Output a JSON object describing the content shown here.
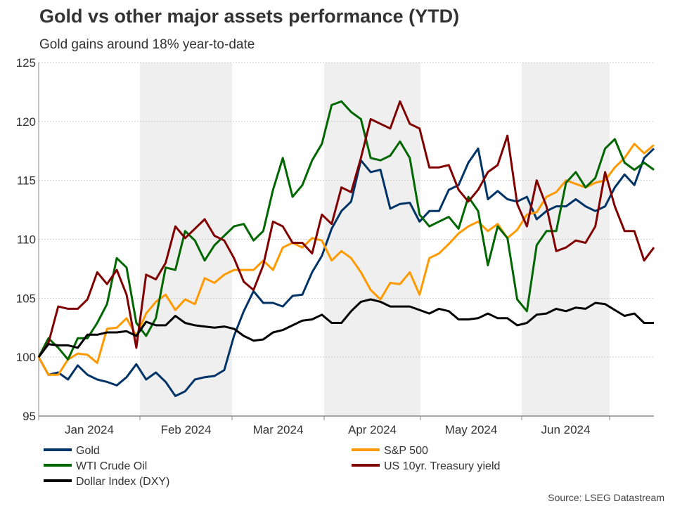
{
  "chart_data": {
    "type": "line",
    "title": "Gold vs other major assets performance (YTD)",
    "subtitle": "Gold gains around 18% year-to-date",
    "xlabel": "",
    "ylabel": "",
    "ylim": [
      95,
      125
    ],
    "yticks": [
      95,
      100,
      105,
      110,
      115,
      120,
      125
    ],
    "x_tick_labels": [
      "Jan 2024",
      "Feb 2024",
      "Mar 2024",
      "Apr 2024",
      "May 2024",
      "Jun 2024"
    ],
    "x_note": "x values are sampling points approx. every two trading days from early Jan to end of Jun 2024 (index 0-63)",
    "grid": true,
    "legend_position": "bottom",
    "source": "Source: LSEG Datastream",
    "series": [
      {
        "name": "Gold",
        "color": "#003366",
        "values": [
          100,
          98.5,
          98.7,
          98.1,
          99.3,
          98.5,
          98.1,
          97.9,
          97.6,
          98.3,
          99.4,
          98.1,
          98.7,
          97.9,
          96.7,
          97.1,
          98.1,
          98.3,
          98.4,
          98.9,
          101.8,
          103.9,
          105.6,
          104.6,
          104.6,
          104.3,
          105.2,
          105.3,
          107.2,
          108.6,
          110.9,
          112.4,
          113.2,
          116.7,
          115.7,
          115.9,
          112.6,
          113.0,
          113.1,
          111.5,
          112.4,
          112.4,
          114.2,
          114.6,
          116.5,
          117.7,
          113.4,
          114.1,
          113.4,
          113.2,
          113.6,
          111.7,
          112.4,
          112.8,
          112.8,
          113.4,
          112.8,
          112.4,
          112.8,
          114.4,
          115.5,
          114.6,
          116.9,
          117.7
        ]
      },
      {
        "name": "S&P 500",
        "color": "#FF9900",
        "values": [
          100,
          98.5,
          98.5,
          99.8,
          100.3,
          100.2,
          99.5,
          102.4,
          102.5,
          103.3,
          101.8,
          103.7,
          104.7,
          105.3,
          104.0,
          104.9,
          104.5,
          106.7,
          106.3,
          107.0,
          107.4,
          107.4,
          107.4,
          108.2,
          107.4,
          109.3,
          109.7,
          109.3,
          110.1,
          109.9,
          108.2,
          109.0,
          108.4,
          107.2,
          105.7,
          104.9,
          106.3,
          106.2,
          107.2,
          105.3,
          108.4,
          108.8,
          109.6,
          110.5,
          111.1,
          111.5,
          110.7,
          111.3,
          110.1,
          110.8,
          112.1,
          112.3,
          113.6,
          114.0,
          115.0,
          114.7,
          114.4,
          114.8,
          115.0,
          116.1,
          116.9,
          118.1,
          117.3,
          118.0
        ]
      },
      {
        "name": "WTI Crude Oil",
        "color": "#006600",
        "values": [
          100,
          101.6,
          100.8,
          99.8,
          101.6,
          101.6,
          102.9,
          104.5,
          108.4,
          107.6,
          102.9,
          101.8,
          103.3,
          107.6,
          107.4,
          110.7,
          109.9,
          108.2,
          109.5,
          110.3,
          111.1,
          111.3,
          109.9,
          110.7,
          114.2,
          116.9,
          113.6,
          114.6,
          116.7,
          118.1,
          121.4,
          121.7,
          120.8,
          120.2,
          116.9,
          116.7,
          117.1,
          118.3,
          116.9,
          112.1,
          111.1,
          111.5,
          111.9,
          110.9,
          113.6,
          112.4,
          107.8,
          111.1,
          110.1,
          104.9,
          103.9,
          109.5,
          110.7,
          110.7,
          114.8,
          115.7,
          114.4,
          115.2,
          117.7,
          118.5,
          116.5,
          115.9,
          116.5,
          115.9
        ]
      },
      {
        "name": "US 10yr. Treasury yield",
        "color": "#800000",
        "values": [
          100,
          101.2,
          104.3,
          104.1,
          104.1,
          104.9,
          107.2,
          106.2,
          107.4,
          105.3,
          100.8,
          107.0,
          106.6,
          108.0,
          111.1,
          110.1,
          110.9,
          111.7,
          110.3,
          109.9,
          108.4,
          106.4,
          105.7,
          107.8,
          111.5,
          111.1,
          109.7,
          109.7,
          108.8,
          112.1,
          111.3,
          114.4,
          114.0,
          116.9,
          120.2,
          119.8,
          119.4,
          121.7,
          119.8,
          119.4,
          116.1,
          116.1,
          116.3,
          114.2,
          113.2,
          114.2,
          115.7,
          116.3,
          118.8,
          113.0,
          111.1,
          115.0,
          112.8,
          109.0,
          109.3,
          109.9,
          109.7,
          111.1,
          115.7,
          112.8,
          110.7,
          110.7,
          108.2,
          109.3
        ]
      },
      {
        "name": "Dollar Index (DXY)",
        "color": "#000000",
        "values": [
          100,
          101.1,
          101.0,
          101.0,
          100.8,
          101.9,
          101.9,
          102.1,
          102.1,
          102.2,
          101.8,
          103.0,
          102.7,
          102.7,
          103.5,
          102.9,
          102.7,
          102.6,
          102.5,
          102.6,
          102.4,
          101.8,
          101.4,
          101.5,
          102.1,
          102.3,
          102.7,
          103.1,
          103.2,
          103.6,
          102.9,
          102.9,
          103.9,
          104.7,
          104.9,
          104.7,
          104.3,
          104.3,
          104.3,
          104.0,
          103.7,
          104.1,
          103.9,
          103.2,
          103.2,
          103.3,
          103.7,
          103.3,
          103.3,
          102.7,
          102.9,
          103.6,
          103.7,
          104.1,
          103.9,
          104.2,
          104.1,
          104.6,
          104.5,
          104.0,
          103.5,
          103.7,
          102.9,
          102.9
        ]
      }
    ]
  }
}
